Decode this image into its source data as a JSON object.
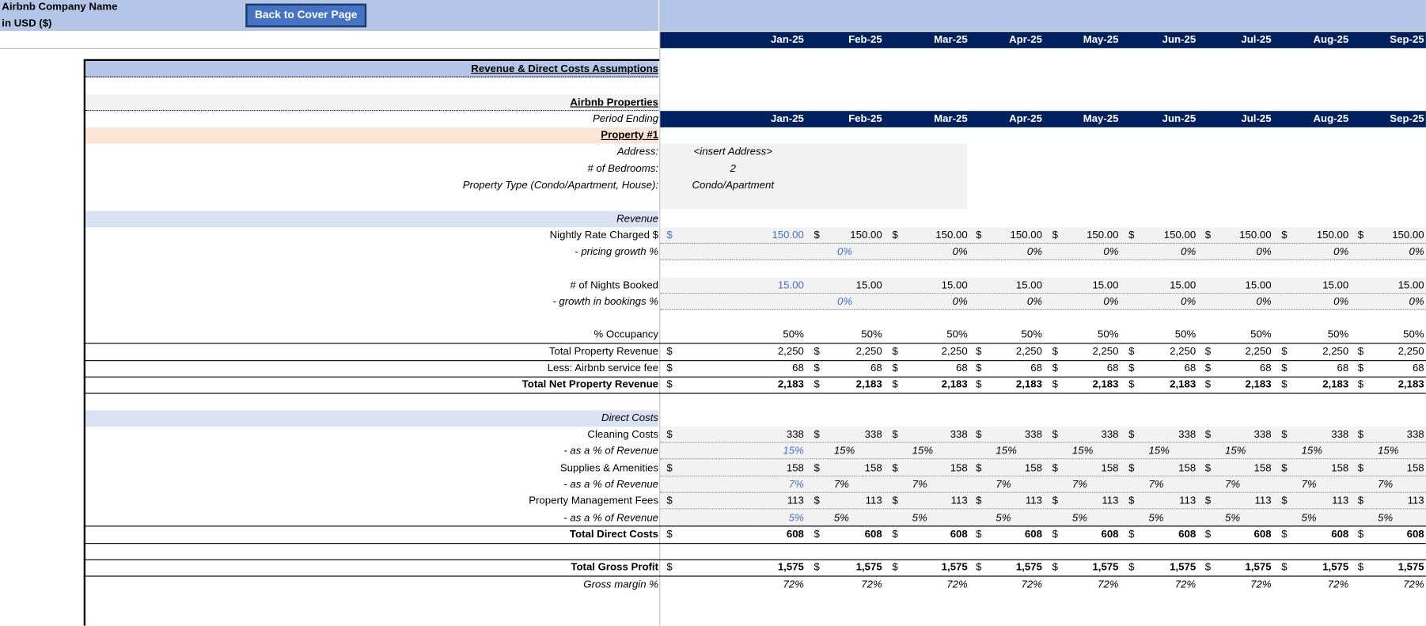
{
  "header": {
    "company": "Airbnb Company Name",
    "currency_note": "in USD ($)",
    "button": "Back to Cover Page"
  },
  "months": [
    "Jan-25",
    "Feb-25",
    "Mar-25",
    "Apr-25",
    "May-25",
    "Jun-25",
    "Jul-25",
    "Aug-25",
    "Sep-25"
  ],
  "currency_symbol": "$",
  "section_title": "Revenue & Direct Costs Assumptions",
  "properties_title": "Airbnb Properties",
  "period_label": "Period Ending",
  "property": {
    "name": "Property #1",
    "details": [
      {
        "label": "Address:",
        "value": "<insert Address>"
      },
      {
        "label": "# of Bedrooms:",
        "value": "2"
      },
      {
        "label": "Property Type (Condo/Apartment, House):",
        "value": "Condo/Apartment"
      }
    ]
  },
  "rows": [
    {
      "label": "Revenue"
    },
    {
      "label": "Nightly Rate Charged $",
      "values": [
        "150.00",
        "150.00",
        "150.00",
        "150.00",
        "150.00",
        "150.00",
        "150.00",
        "150.00",
        "150.00"
      ]
    },
    {
      "label": "- pricing growth %",
      "values": [
        null,
        "0%",
        "0%",
        "0%",
        "0%",
        "0%",
        "0%",
        "0%",
        "0%"
      ]
    },
    {
      "label": "# of Nights Booked",
      "values": [
        "15.00",
        "15.00",
        "15.00",
        "15.00",
        "15.00",
        "15.00",
        "15.00",
        "15.00",
        "15.00"
      ]
    },
    {
      "label": "- growth in bookings %",
      "values": [
        null,
        "0%",
        "0%",
        "0%",
        "0%",
        "0%",
        "0%",
        "0%",
        "0%"
      ]
    },
    {
      "label": "% Occupancy",
      "values": [
        "50%",
        "50%",
        "50%",
        "50%",
        "50%",
        "50%",
        "50%",
        "50%",
        "50%"
      ]
    },
    {
      "label": "Total Property Revenue",
      "values": [
        "2,250",
        "2,250",
        "2,250",
        "2,250",
        "2,250",
        "2,250",
        "2,250",
        "2,250",
        "2,250"
      ]
    },
    {
      "label": "Less: Airbnb service fee",
      "values": [
        "68",
        "68",
        "68",
        "68",
        "68",
        "68",
        "68",
        "68",
        "68"
      ]
    },
    {
      "label": "Total Net Property Revenue",
      "values": [
        "2,183",
        "2,183",
        "2,183",
        "2,183",
        "2,183",
        "2,183",
        "2,183",
        "2,183",
        "2,183"
      ]
    },
    {
      "label": "Direct Costs"
    },
    {
      "label": "Cleaning Costs",
      "values": [
        "338",
        "338",
        "338",
        "338",
        "338",
        "338",
        "338",
        "338",
        "338"
      ]
    },
    {
      "label": "- as a % of Revenue",
      "values": [
        "15%",
        "15%",
        "15%",
        "15%",
        "15%",
        "15%",
        "15%",
        "15%",
        "15%"
      ]
    },
    {
      "label": "Supplies & Amenities",
      "values": [
        "158",
        "158",
        "158",
        "158",
        "158",
        "158",
        "158",
        "158",
        "158"
      ]
    },
    {
      "label": "- as a % of Revenue",
      "values": [
        "7%",
        "7%",
        "7%",
        "7%",
        "7%",
        "7%",
        "7%",
        "7%",
        "7%"
      ]
    },
    {
      "label": "Property Management Fees",
      "values": [
        "113",
        "113",
        "113",
        "113",
        "113",
        "113",
        "113",
        "113",
        "113"
      ]
    },
    {
      "label": "- as a % of Revenue",
      "values": [
        "5%",
        "5%",
        "5%",
        "5%",
        "5%",
        "5%",
        "5%",
        "5%",
        "5%"
      ]
    },
    {
      "label": "Total Direct Costs",
      "values": [
        "608",
        "608",
        "608",
        "608",
        "608",
        "608",
        "608",
        "608",
        "608"
      ]
    },
    {
      "label": "Total Gross Profit",
      "values": [
        "1,575",
        "1,575",
        "1,575",
        "1,575",
        "1,575",
        "1,575",
        "1,575",
        "1,575",
        "1,575"
      ]
    },
    {
      "label": "Gross margin %",
      "values": [
        "72%",
        "72%",
        "72%",
        "72%",
        "72%",
        "72%",
        "72%",
        "72%",
        "72%"
      ]
    }
  ]
}
